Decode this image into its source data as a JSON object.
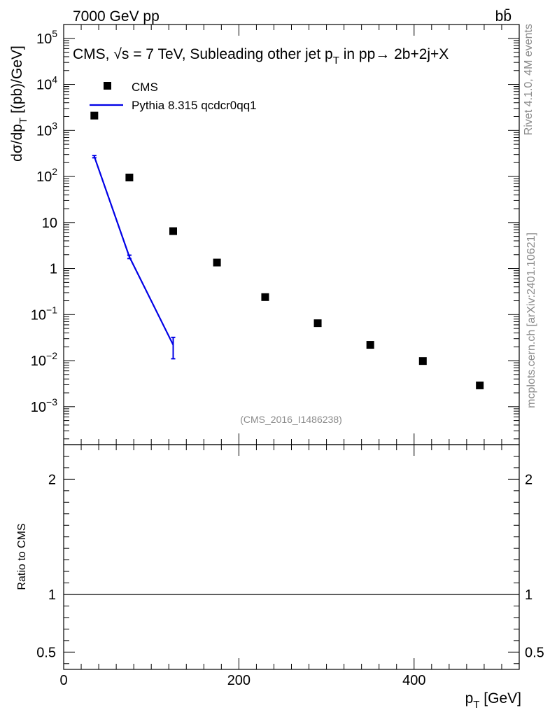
{
  "header": {
    "energy_label": "7000 GeV pp",
    "process_label": "bb̄"
  },
  "side_labels": {
    "rivet": "Rivet 4.1.0,  4M events",
    "source": "mcplots.cern.ch [arXiv:2401.10621]"
  },
  "watermark": "(CMS_2016_I1486238)",
  "colors": {
    "data_marker": "#000000",
    "mc_line": "#0000e6",
    "watermark": "#8a8a8a"
  },
  "chart_data": [
    {
      "type": "scatter",
      "panel": "main",
      "title": "CMS, √s = 7 TeV, Subleading other jet pT in pp→ 2b+2j+X",
      "title_parts": {
        "prefix": "CMS, ",
        "sqrt": "√s",
        "mid": " = 7 TeV, Subleading other jet p",
        "sub": "T",
        "suffix": " in pp→  2b+2j+X"
      },
      "ylabel": "dσ/dpT  [(pb)/GeV]",
      "ylabel_parts": {
        "main": "dσ/dp",
        "sub": "T",
        "unit": "  [(pb)/GeV]"
      },
      "yscale": "log",
      "ylim": [
        0.00015,
        200000
      ],
      "xlim": [
        0,
        520
      ],
      "y_tick_labels": [
        {
          "value": 100000,
          "base": "10",
          "exp": "5"
        },
        {
          "value": 10000,
          "base": "10",
          "exp": "4"
        },
        {
          "value": 1000,
          "base": "10",
          "exp": "3"
        },
        {
          "value": 100,
          "base": "10",
          "exp": "2"
        },
        {
          "value": 10,
          "base": "10",
          "exp": ""
        },
        {
          "value": 1,
          "base": "1",
          "exp": ""
        },
        {
          "value": 0.1,
          "base": "10",
          "exp": "−1"
        },
        {
          "value": 0.01,
          "base": "10",
          "exp": "−2"
        },
        {
          "value": 0.001,
          "base": "10",
          "exp": "−3"
        }
      ],
      "legend_position": "top-left",
      "series": [
        {
          "name": "CMS",
          "kind": "data",
          "x": [
            35,
            75,
            125,
            175,
            230,
            290,
            350,
            410,
            475
          ],
          "y": [
            2100,
            95,
            6.5,
            1.35,
            0.24,
            0.065,
            0.022,
            0.0098,
            0.0029
          ]
        },
        {
          "name": "Pythia 8.315 qcdcr0qq1",
          "kind": "mc",
          "x": [
            35,
            75,
            125
          ],
          "y": [
            270,
            1.8,
            0.022
          ],
          "yerr_low": [
            255,
            1.65,
            0.011
          ],
          "yerr_high": [
            285,
            1.95,
            0.032
          ]
        }
      ]
    },
    {
      "type": "line",
      "panel": "ratio",
      "ylabel": "Ratio to CMS",
      "xlabel": "pT [GeV]",
      "xlabel_parts": {
        "main": "p",
        "sub": "T",
        "unit": " [GeV]"
      },
      "ylim": [
        0.35,
        2.3
      ],
      "xlim": [
        0,
        520
      ],
      "x_ticks": [
        0,
        200,
        400
      ],
      "x_tick_labels": [
        "0",
        "200",
        "400"
      ],
      "y_ticks": [
        0.5,
        1,
        2
      ],
      "y_tick_labels": [
        "0.5",
        "1",
        "2"
      ],
      "reference_value": 1
    }
  ]
}
